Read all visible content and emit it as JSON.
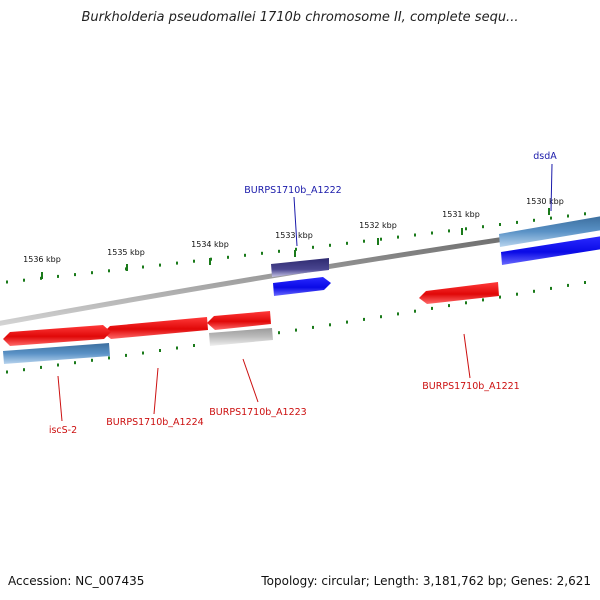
{
  "title": "Burkholderia pseudomallei 1710b chromosome II, complete sequ...",
  "footer": {
    "accession": "Accession: NC_007435",
    "topology": "Topology: circular; Length: 3,181,762 bp; Genes: 2,621"
  },
  "colors": {
    "backbone": "#7a7a7a",
    "tick": "#1a7a1a",
    "forward_gene": "#1010ee",
    "forward_cds": "#4f86b8",
    "forward_other": "#3e3a80",
    "reverse_gene": "#e01010",
    "reverse_cds": "#4f86b8",
    "reverse_other": "#b8b8b8",
    "forward_label": "#1a1aaa",
    "reverse_label": "#cc1010"
  },
  "ruler": [
    {
      "label": "1530 kbp"
    },
    {
      "label": "1531 kbp"
    },
    {
      "label": "1532 kbp"
    },
    {
      "label": "1533 kbp"
    },
    {
      "label": "1534 kbp"
    },
    {
      "label": "1535 kbp"
    },
    {
      "label": "1536 kbp"
    }
  ],
  "gene_labels": [
    {
      "name": "dsdA",
      "strand": "forward"
    },
    {
      "name": "BURPS1710b_A1222",
      "strand": "forward"
    },
    {
      "name": "BURPS1710b_A1221",
      "strand": "reverse"
    },
    {
      "name": "BURPS1710b_A1223",
      "strand": "reverse"
    },
    {
      "name": "BURPS1710b_A1224",
      "strand": "reverse"
    },
    {
      "name": "iscS-2",
      "strand": "reverse"
    }
  ]
}
